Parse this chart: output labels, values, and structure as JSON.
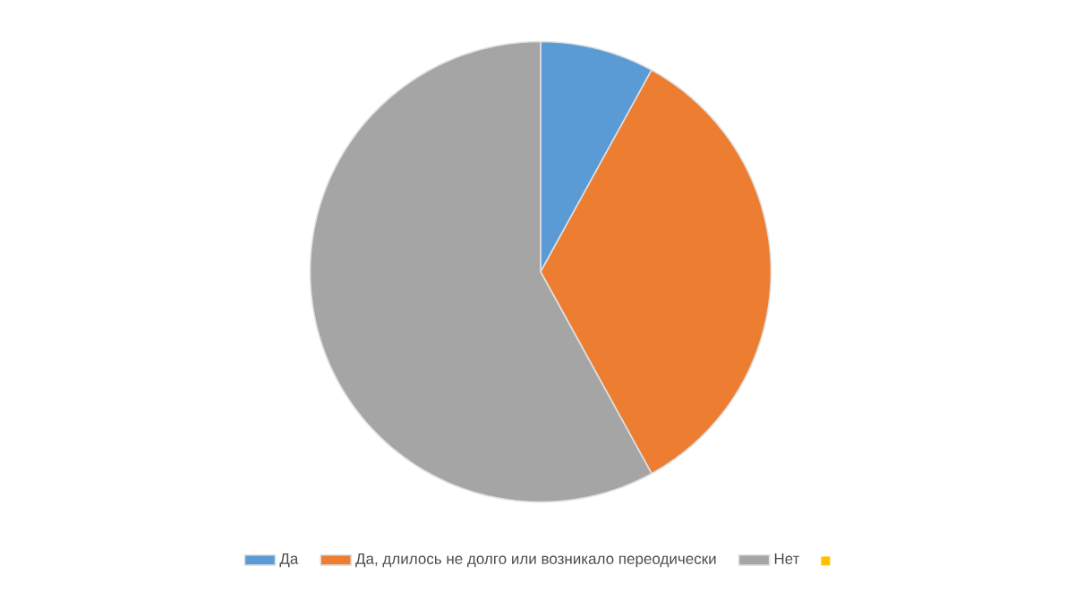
{
  "chart_data": {
    "type": "pie",
    "categories": [
      "Да",
      "Да, длилось не долго или возникало переодически",
      "Нет",
      null
    ],
    "values": [
      8,
      34,
      58,
      0
    ],
    "colors": [
      "#5b9bd5",
      "#ed7d31",
      "#a5a5a5",
      "#ffc000"
    ],
    "legend": "bottom"
  }
}
